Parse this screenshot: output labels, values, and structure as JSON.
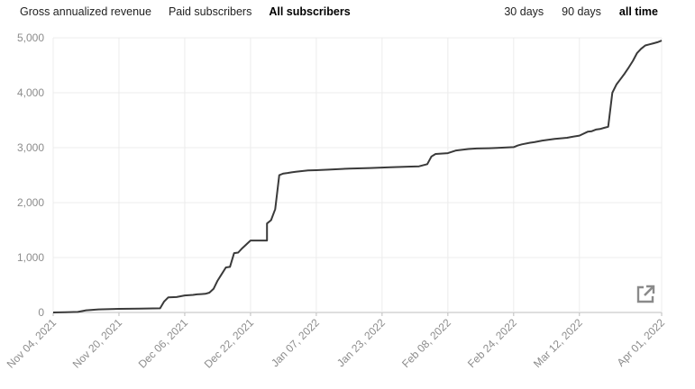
{
  "tabs": [
    {
      "label": "Gross annualized revenue",
      "active": false
    },
    {
      "label": "Paid subscribers",
      "active": false
    },
    {
      "label": "All subscribers",
      "active": true
    }
  ],
  "ranges": [
    {
      "label": "30 days",
      "active": false
    },
    {
      "label": "90 days",
      "active": false
    },
    {
      "label": "all time",
      "active": true
    }
  ],
  "icons": {
    "export": "external-link-icon"
  },
  "colors": {
    "line": "#3a3a3a",
    "grid": "#ececec",
    "axis_text": "#8c8c8c"
  },
  "chart_data": {
    "type": "line",
    "title": "",
    "xlabel": "",
    "ylabel": "",
    "ylim": [
      0,
      5000
    ],
    "yticks": [
      "5,000",
      "4,000",
      "3,000",
      "2,000",
      "1,000",
      "0"
    ],
    "ytick_values": [
      5000,
      4000,
      3000,
      2000,
      1000,
      0
    ],
    "xticks": [
      "Nov 04, 2021",
      "Nov 20, 2021",
      "Dec 06, 2021",
      "Dec 22, 2021",
      "Jan 07, 2022",
      "Jan 23, 2022",
      "Feb 08, 2022",
      "Feb 24, 2022",
      "Mar 12, 2022",
      "Apr 01, 2022"
    ],
    "xtick_dates": [
      "2021-11-04",
      "2021-11-20",
      "2021-12-06",
      "2021-12-22",
      "2022-01-07",
      "2022-01-23",
      "2022-02-08",
      "2022-02-24",
      "2022-03-12",
      "2022-04-01"
    ],
    "grid": true,
    "series": [
      {
        "x": [
          "2021-11-04",
          "2021-11-07",
          "2021-11-10",
          "2021-11-12",
          "2021-11-15",
          "2021-11-18",
          "2021-11-20",
          "2021-11-25",
          "2021-11-30",
          "2021-11-30",
          "2021-12-01",
          "2021-12-02",
          "2021-12-04",
          "2021-12-06",
          "2021-12-08",
          "2021-12-09",
          "2021-12-10",
          "2021-12-11",
          "2021-12-12",
          "2021-12-13",
          "2021-12-14",
          "2021-12-15",
          "2021-12-16",
          "2021-12-17",
          "2021-12-18",
          "2021-12-19",
          "2021-12-20",
          "2021-12-22",
          "2021-12-24",
          "2021-12-25",
          "2021-12-26",
          "2021-12-26",
          "2021-12-27",
          "2021-12-28",
          "2021-12-29",
          "2021-12-30",
          "2021-12-31",
          "2022-01-01",
          "2022-01-02",
          "2022-01-03",
          "2022-01-05",
          "2022-01-07",
          "2022-01-10",
          "2022-01-15",
          "2022-01-20",
          "2022-01-25",
          "2022-01-30",
          "2022-02-01",
          "2022-02-03",
          "2022-02-04",
          "2022-02-05",
          "2022-02-08",
          "2022-02-10",
          "2022-02-13",
          "2022-02-15",
          "2022-02-18",
          "2022-02-20",
          "2022-02-24",
          "2022-02-25",
          "2022-02-26",
          "2022-02-28",
          "2022-03-01",
          "2022-03-03",
          "2022-03-06",
          "2022-03-09",
          "2022-03-10",
          "2022-03-12",
          "2022-03-14",
          "2022-03-15",
          "2022-03-16",
          "2022-03-17",
          "2022-03-18",
          "2022-03-19",
          "2022-03-20",
          "2022-03-21",
          "2022-03-22",
          "2022-03-23",
          "2022-03-24",
          "2022-03-25",
          "2022-03-26",
          "2022-03-27",
          "2022-03-28",
          "2022-03-29",
          "2022-03-30",
          "2022-03-31",
          "2022-04-01"
        ],
        "y": [
          0,
          5,
          10,
          40,
          55,
          60,
          65,
          70,
          75,
          75,
          200,
          275,
          280,
          310,
          320,
          330,
          335,
          340,
          360,
          430,
          580,
          700,
          820,
          830,
          1080,
          1090,
          1170,
          1310,
          1310,
          1310,
          1310,
          1620,
          1680,
          1880,
          2500,
          2530,
          2540,
          2550,
          2560,
          2570,
          2585,
          2590,
          2600,
          2620,
          2630,
          2645,
          2655,
          2660,
          2700,
          2840,
          2885,
          2900,
          2950,
          2975,
          2985,
          2990,
          2995,
          3010,
          3040,
          3060,
          3090,
          3100,
          3130,
          3160,
          3180,
          3195,
          3220,
          3290,
          3300,
          3330,
          3340,
          3360,
          3380,
          4000,
          4150,
          4250,
          4350,
          4460,
          4580,
          4720,
          4800,
          4860,
          4880,
          4900,
          4920,
          4950
        ]
      }
    ]
  }
}
